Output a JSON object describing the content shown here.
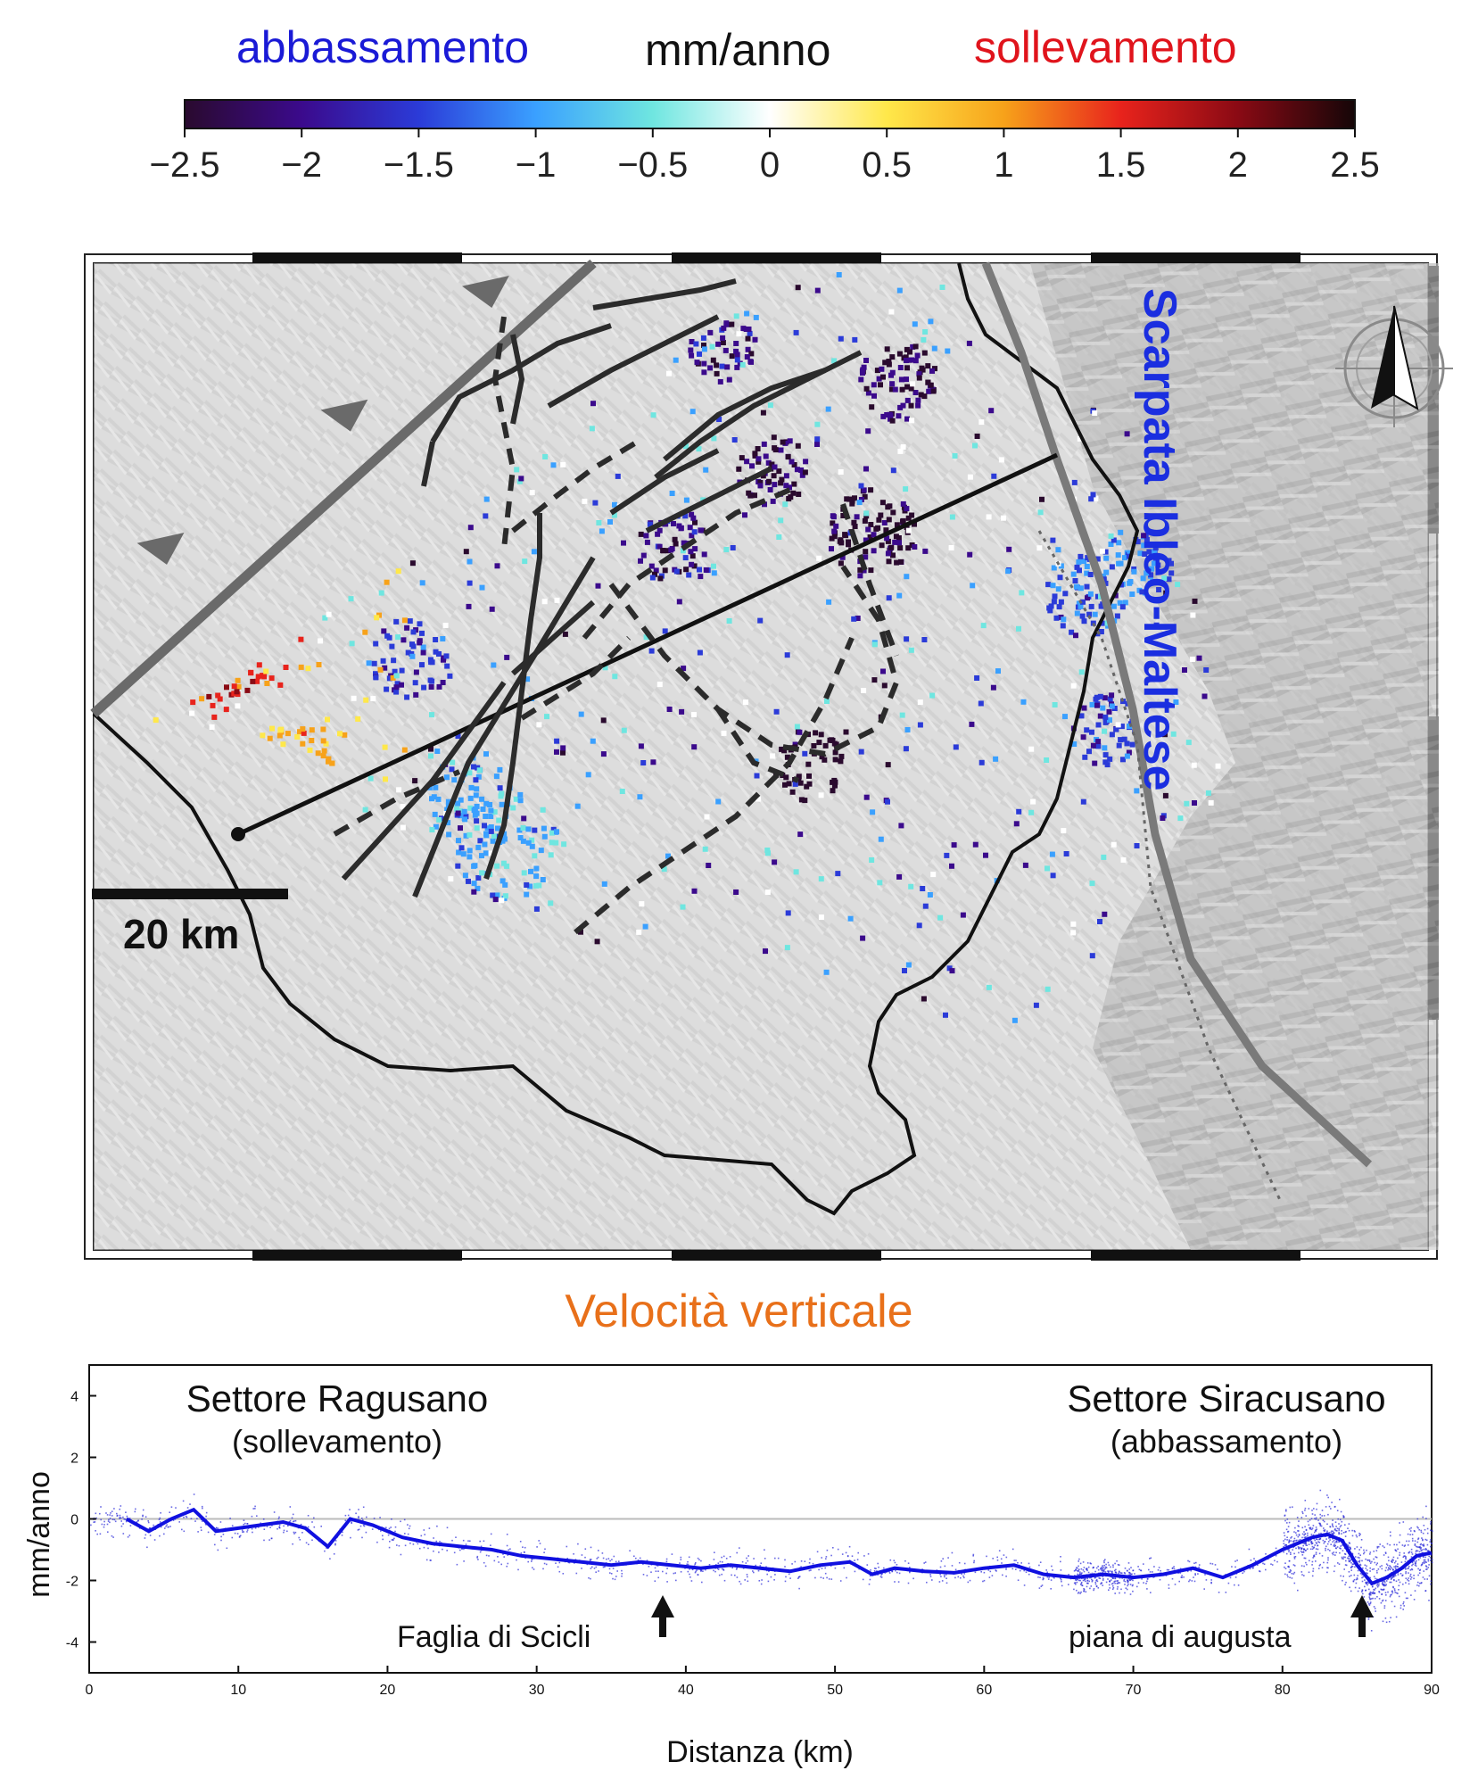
{
  "header": {
    "left_label": "abbassamento",
    "center_label": "mm/anno",
    "right_label": "sollevamento",
    "left_color": "#1a1ad6",
    "center_color": "#111111",
    "right_color": "#e0141c"
  },
  "colorbar": {
    "min": -2.5,
    "max": 2.5,
    "ticks": [
      "−2.5",
      "−2",
      "−1.5",
      "−1",
      "−0.5",
      "0",
      "0.5",
      "1",
      "1.5",
      "2",
      "2.5"
    ],
    "stops": [
      "#2a0a2e",
      "#3b0a8c",
      "#2b3bd8",
      "#3aa0ff",
      "#6fe6e0",
      "#ffffff",
      "#ffe84a",
      "#f7a21a",
      "#e8231c",
      "#8a0a14",
      "#150608"
    ]
  },
  "map": {
    "scale_label": "20 km",
    "scarp_label": "Scarpata Ibleo-Maltese",
    "scarp_color": "#1a2ee0",
    "compass": "north-arrow-icon"
  },
  "map_title": {
    "text": "Velocità verticale",
    "color": "#e8701a"
  },
  "chart_data": {
    "type": "scatter",
    "xlabel": "Distanza (km)",
    "ylabel": "mm/anno",
    "xlim": [
      0,
      90
    ],
    "ylim": [
      -5,
      5
    ],
    "xticks": [
      0,
      10,
      20,
      30,
      40,
      50,
      60,
      70,
      80,
      90
    ],
    "yticks": [
      -4,
      -2,
      0,
      2,
      4
    ],
    "point_color": "#2a2ad8",
    "line_color": "#1010e0",
    "profile_line": {
      "x": [
        2.5,
        4,
        5.5,
        7,
        8.5,
        10,
        11.5,
        13,
        14.5,
        16,
        17.5,
        19,
        21,
        23,
        25,
        27,
        29,
        31,
        33,
        35,
        37,
        39,
        41,
        43,
        45,
        47,
        49,
        51,
        52.5,
        54,
        56,
        58,
        60,
        62,
        64,
        66,
        68,
        70,
        72,
        74,
        76,
        78,
        80,
        82,
        83,
        84,
        85,
        86,
        87,
        88,
        89,
        90
      ],
      "y": [
        0.0,
        -0.4,
        0.0,
        0.3,
        -0.4,
        -0.3,
        -0.2,
        -0.1,
        -0.3,
        -0.9,
        0.0,
        -0.2,
        -0.6,
        -0.8,
        -0.9,
        -1.0,
        -1.2,
        -1.3,
        -1.4,
        -1.5,
        -1.4,
        -1.5,
        -1.6,
        -1.5,
        -1.6,
        -1.7,
        -1.5,
        -1.4,
        -1.8,
        -1.6,
        -1.7,
        -1.75,
        -1.6,
        -1.5,
        -1.8,
        -1.9,
        -1.8,
        -1.9,
        -1.8,
        -1.6,
        -1.9,
        -1.5,
        -1.0,
        -0.6,
        -0.5,
        -0.7,
        -1.5,
        -2.1,
        -1.9,
        -1.6,
        -1.2,
        -1.1
      ]
    },
    "annotations": {
      "left_title": "Settore Ragusano",
      "left_sub": "(sollevamento)",
      "right_title": "Settore Siracusano",
      "right_sub": "(abbassamento)",
      "fault_label": "Faglia di Scicli",
      "plain_label": "piana di augusta"
    },
    "grid": false,
    "zero_line": true
  }
}
